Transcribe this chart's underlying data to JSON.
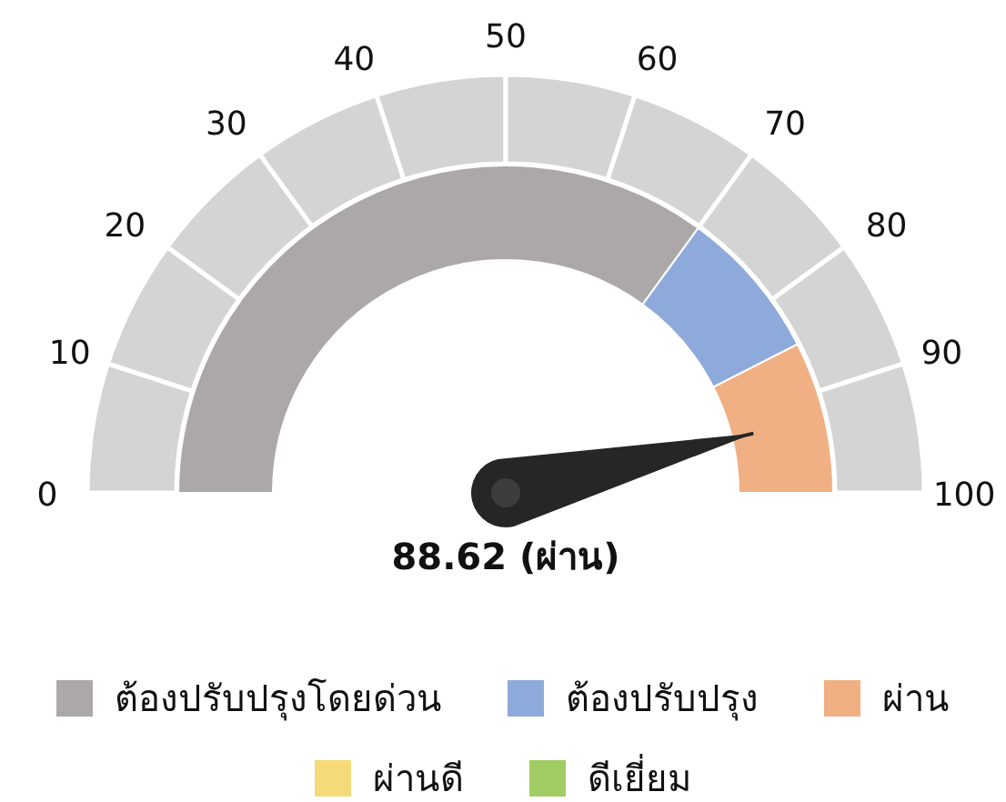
{
  "chart_data": {
    "type": "donut",
    "title": "88.62 (ผ่าน)",
    "categories": [
      "ต้องปรับปรุงโดยด่วน",
      "ต้องปรับปรุง",
      "ผ่าน",
      "ผ่านดี",
      "ดีเยี่ยม"
    ],
    "values": [
      70,
      15,
      15,
      0,
      0
    ],
    "colors": [
      "#aca8aa",
      "#8eaadb",
      "#f0b084",
      "#f5da7a",
      "#a0cc63"
    ],
    "annotations": [
      "0",
      "10",
      "20",
      "30",
      "40",
      "50",
      "60",
      "70",
      "80",
      "90",
      "100"
    ],
    "needle": "ผ่าน",
    "legend": "bottom"
  }
}
